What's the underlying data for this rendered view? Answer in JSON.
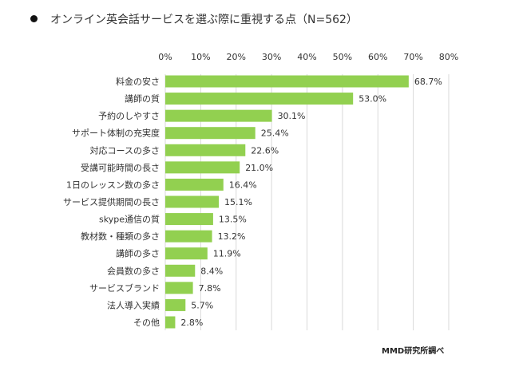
{
  "title": "オンライン英会話サービスを選ぶ際に重視する点（N=562）",
  "source": "MMD研究所調べ",
  "chart_data": {
    "type": "bar",
    "orientation": "horizontal",
    "categories": [
      "料金の安さ",
      "講師の質",
      "予約のしやすさ",
      "サポート体制の充実度",
      "対応コースの多さ",
      "受講可能時間の長さ",
      "1日のレッスン数の多さ",
      "サービス提供期間の長さ",
      "skype通信の質",
      "教材数・種類の多さ",
      "講師の多さ",
      "会員数の多さ",
      "サービスブランド",
      "法人導入実績",
      "その他"
    ],
    "values": [
      68.7,
      53.0,
      30.1,
      25.4,
      22.6,
      21.0,
      16.4,
      15.1,
      13.5,
      13.2,
      11.9,
      8.4,
      7.8,
      5.7,
      2.8
    ],
    "data_labels": [
      "68.7%",
      "53.0%",
      "30.1%",
      "25.4%",
      "22.6%",
      "21.0%",
      "16.4%",
      "15.1%",
      "13.5%",
      "13.2%",
      "11.9%",
      "8.4%",
      "7.8%",
      "5.7%",
      "2.8%"
    ],
    "xlim": [
      0,
      80
    ],
    "x_ticks": [
      "0%",
      "10%",
      "20%",
      "30%",
      "40%",
      "50%",
      "60%",
      "70%",
      "80%"
    ],
    "axis_position": "top",
    "grid": true,
    "bar_color": "#92d050",
    "grid_color": "#d9d9d9"
  }
}
